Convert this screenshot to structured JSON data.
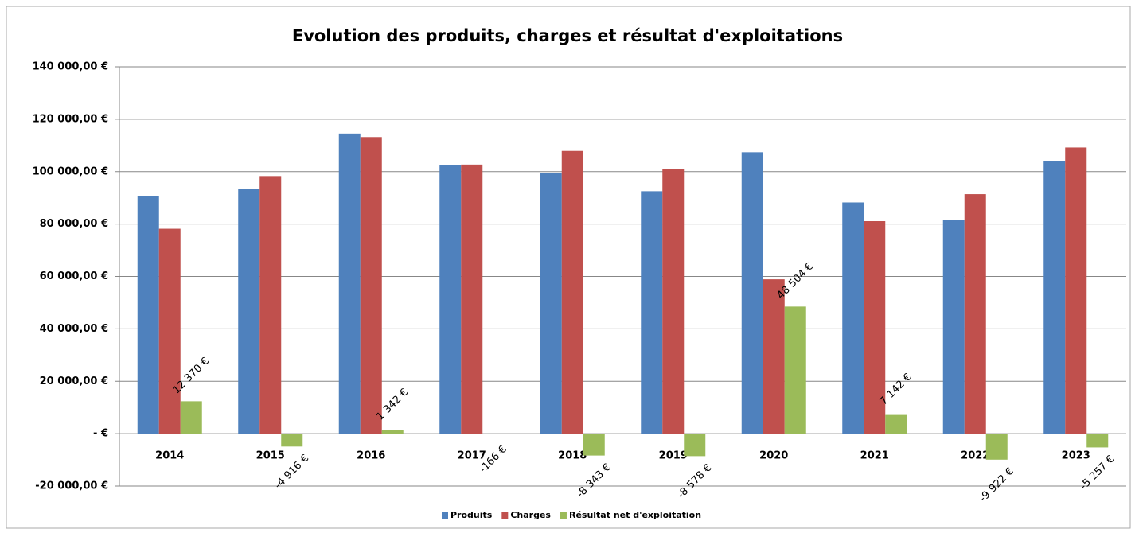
{
  "chart_data": {
    "type": "bar",
    "title": "Evolution des produits, charges et résultat d'exploitations",
    "categories": [
      "2014",
      "2015",
      "2016",
      "2017",
      "2018",
      "2019",
      "2020",
      "2021",
      "2022",
      "2023"
    ],
    "series": [
      {
        "name": "Produits",
        "color": "#4f81bd",
        "values": [
          90570,
          93384,
          114542,
          102534,
          99557,
          92522,
          107404,
          88242,
          81478,
          103943
        ]
      },
      {
        "name": "Charges",
        "color": "#c0504d",
        "values": [
          78200,
          98300,
          113200,
          102700,
          107900,
          101100,
          58900,
          81100,
          91400,
          109200
        ]
      },
      {
        "name": "Résultat net d'exploitation",
        "color": "#9bbb59",
        "values": [
          12370,
          -4916,
          1342,
          -166,
          -8343,
          -8578,
          48504,
          7142,
          -9922,
          -5257
        ],
        "value_labels": [
          "12 370 €",
          "-4 916 €",
          "1 342 €",
          "-166 €",
          "-8 343 €",
          "-8 578 €",
          "48 504 €",
          "7 142 €",
          "-9 922 €",
          "-5 257 €"
        ]
      }
    ],
    "ylim": [
      -20000,
      140000
    ],
    "yticks": [
      {
        "value": -20000,
        "label": "-20 000,00 €"
      },
      {
        "value": 0,
        "label": "-   €"
      },
      {
        "value": 20000,
        "label": "20 000,00 €"
      },
      {
        "value": 40000,
        "label": "40 000,00 €"
      },
      {
        "value": 60000,
        "label": "60 000,00 €"
      },
      {
        "value": 80000,
        "label": "80 000,00 €"
      },
      {
        "value": 100000,
        "label": "100 000,00 €"
      },
      {
        "value": 120000,
        "label": "120 000,00 €"
      },
      {
        "value": 140000,
        "label": "140 000,00 €"
      }
    ],
    "grid": true,
    "legend": "bottom"
  }
}
